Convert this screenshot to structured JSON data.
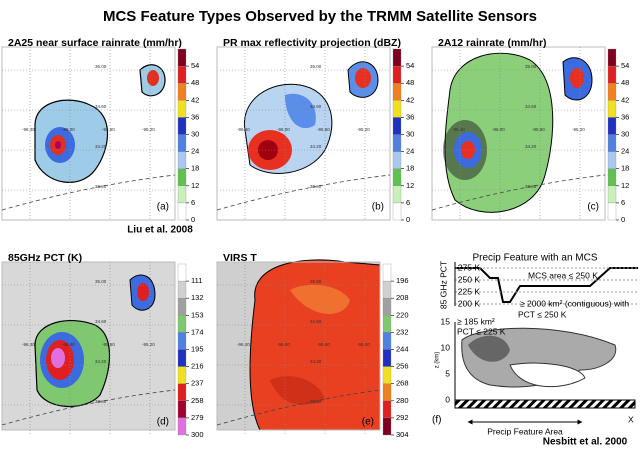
{
  "title": "MCS Feature Types Observed by the TRMM Satellite Sensors",
  "credits": [
    "Liu et al. 2008",
    "Nesbitt et al. 2000"
  ],
  "grid_labels": {
    "lat": [
      "35.00",
      "34.60",
      "34.20",
      "33.80"
    ],
    "lon": [
      "-96.40",
      "-96.00",
      "-95.60",
      "-95.20"
    ]
  },
  "panels": [
    {
      "title": "2A25 near surface rainrate (mm/hr)",
      "letter": "(a)",
      "cblim": [
        0,
        60
      ],
      "reverse": false,
      "ticks": [
        0,
        6,
        12,
        18,
        24,
        30,
        36,
        42,
        48,
        54
      ],
      "colors": [
        "#ffffff",
        "#c8f0b8",
        "#60c050",
        "#a8c8f0",
        "#5080e0",
        "#2030c0",
        "#f0e020",
        "#f08020",
        "#e02020",
        "#800020"
      ]
    },
    {
      "title": "PR max reflectivity projection (dBZ)",
      "letter": "(b)",
      "cblim": [
        0,
        60
      ],
      "reverse": false,
      "ticks": [
        0,
        6,
        12,
        18,
        24,
        30,
        36,
        42,
        48,
        54
      ],
      "colors": [
        "#ffffff",
        "#c8f0b8",
        "#60c050",
        "#a8c8f0",
        "#5080e0",
        "#2030c0",
        "#f0e020",
        "#f08020",
        "#e02020",
        "#800020"
      ]
    },
    {
      "title": "2A12 rainrate (mm/hr)",
      "letter": "(c)",
      "cblim": [
        0,
        60
      ],
      "reverse": false,
      "ticks": [
        0,
        6,
        12,
        18,
        24,
        30,
        36,
        42,
        48,
        54
      ],
      "colors": [
        "#ffffff",
        "#c8f0b8",
        "#60c050",
        "#a8c8f0",
        "#5080e0",
        "#2030c0",
        "#f0e020",
        "#f08020",
        "#e02020",
        "#800020"
      ]
    },
    {
      "title": "85GHz PCT (K)",
      "letter": "(d)",
      "cblim": [
        90,
        300
      ],
      "reverse": true,
      "ticks": [
        111,
        132,
        153,
        174,
        195,
        216,
        237,
        258,
        279,
        300
      ],
      "colors": [
        "#ffffff",
        "#d0d0d0",
        "#a0a0a0",
        "#80c870",
        "#5080e0",
        "#2030c0",
        "#f0e020",
        "#e02020",
        "#a00030",
        "#e070e0"
      ]
    },
    {
      "title": "VIRS T",
      "letter": "(e)",
      "cblim": [
        184,
        304
      ],
      "reverse": true,
      "ticks": [
        196,
        208,
        220,
        232,
        244,
        256,
        268,
        280,
        292,
        304
      ],
      "colors": [
        "#ffffff",
        "#d0d0d0",
        "#a0a0a0",
        "#80c870",
        "#5080e0",
        "#2030c0",
        "#f0e020",
        "#f08020",
        "#e02020",
        "#800020"
      ]
    }
  ],
  "schematic": {
    "title": "Precip Feature with an MCS",
    "letter": "(f)",
    "pct_axis_label": "85 GHz PCT",
    "pct_ticks": [
      "275 K",
      "250 K",
      "225 K",
      "200 K"
    ],
    "mcs_area": "MCS area ≤ 250 K",
    "note_185_a": "≥ 185 km²",
    "note_185_b": "PCT ≤ 225 K",
    "note_2000_a": "≥ 2000 km² (contiguous) with",
    "note_2000_b": "PCT ≤ 250 K",
    "z_axis_label": "z (km)",
    "z_ticks": [
      "15",
      "10",
      "5",
      "0"
    ],
    "area_label": "Precip Feature Area",
    "x_label": "X"
  }
}
